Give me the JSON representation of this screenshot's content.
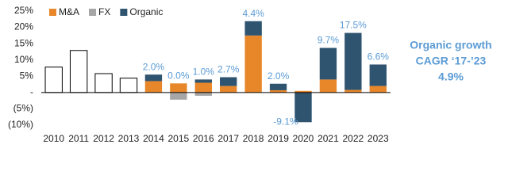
{
  "chart_data": {
    "type": "bar",
    "categories": [
      "2010",
      "2011",
      "2012",
      "2013",
      "2014",
      "2015",
      "2016",
      "2017",
      "2018",
      "2019",
      "2020",
      "2021",
      "2022",
      "2023"
    ],
    "total_values": [
      7.8,
      12.9,
      5.8,
      4.4,
      null,
      null,
      null,
      null,
      null,
      null,
      null,
      null,
      null,
      null
    ],
    "total_color": "#ffffff",
    "series": [
      {
        "name": "M&A",
        "color": "#e8872a",
        "values": [
          null,
          null,
          null,
          null,
          3.5,
          2.8,
          3.0,
          2.0,
          17.5,
          0.7,
          0.5,
          4.0,
          0.8,
          2.0
        ]
      },
      {
        "name": "FX",
        "color": "#a6a6a6",
        "values": [
          null,
          null,
          null,
          null,
          0,
          -2.2,
          -1.0,
          0,
          0,
          0,
          0,
          0,
          0,
          0
        ]
      },
      {
        "name": "Organic",
        "color": "#2f5470",
        "values": [
          null,
          null,
          null,
          null,
          2.0,
          0.0,
          1.0,
          2.7,
          4.4,
          2.0,
          -9.1,
          9.7,
          17.5,
          6.6
        ],
        "value_labels": [
          null,
          null,
          null,
          null,
          "2.0%",
          "0.0%",
          "1.0%",
          "2.7%",
          "4.4%",
          "2.0%",
          "-9.1%",
          "9.7%",
          "17.5%",
          "6.6%"
        ]
      }
    ],
    "ylim": [
      -10,
      25
    ],
    "yticks": [
      {
        "value": 25,
        "label": "25%"
      },
      {
        "value": 20,
        "label": "20%"
      },
      {
        "value": 15,
        "label": "15%"
      },
      {
        "value": 10,
        "label": "10%"
      },
      {
        "value": 5,
        "label": "5%"
      },
      {
        "value": 0,
        "label": "-"
      },
      {
        "value": -5,
        "label": "(5%)"
      },
      {
        "value": -10,
        "label": "(10%)"
      }
    ],
    "grid": false,
    "annotation": [
      "Organic growth",
      "CAGR ‘17-’23",
      "4.9%"
    ]
  }
}
